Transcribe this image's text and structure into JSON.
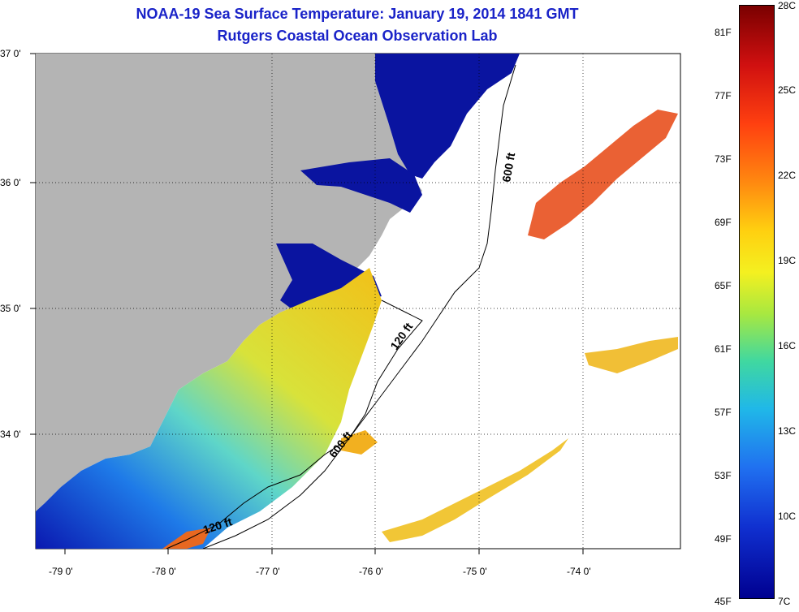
{
  "header": {
    "title": "NOAA-19 Sea Surface Temperature:  January 19, 2014 1841 GMT",
    "subtitle": "Rutgers Coastal Ocean Observation Lab"
  },
  "map": {
    "lat_labels": [
      "37 0'",
      "36 0'",
      "35 0'",
      "34 0'"
    ],
    "lon_labels": [
      "-79 0'",
      "-78 0'",
      "-77 0'",
      "-76 0'",
      "-75 0'",
      "-74 0'"
    ],
    "contours": [
      {
        "label": "600 ft"
      },
      {
        "label": "120 ft"
      },
      {
        "label": "600 ft"
      },
      {
        "label": "120 ft"
      }
    ],
    "colors": {
      "land": "#b4b4b4",
      "cold": "#0a14a0",
      "warm": "#e8461e"
    }
  },
  "colorbar": {
    "fahrenheit": [
      "81F",
      "77F",
      "73F",
      "69F",
      "65F",
      "61F",
      "57F",
      "53F",
      "49F",
      "45F"
    ],
    "celsius": [
      "28C",
      "25C",
      "22C",
      "19C",
      "16C",
      "13C",
      "10C",
      "7C"
    ]
  }
}
